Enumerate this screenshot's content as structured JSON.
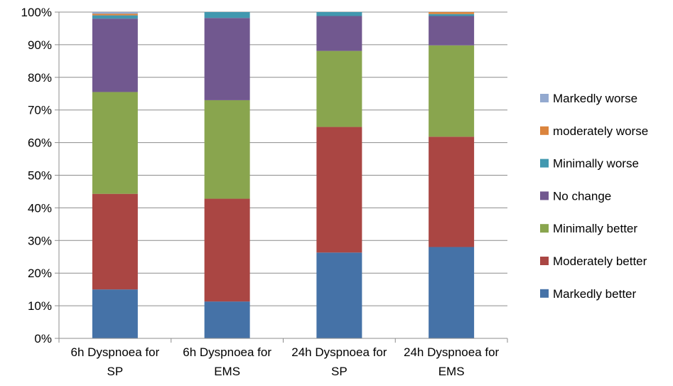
{
  "chart_data": {
    "type": "bar",
    "stacked": true,
    "percent_stacked": true,
    "categories": [
      [
        "6h Dyspnoea for",
        "SP"
      ],
      [
        "6h Dyspnoea for",
        "EMS"
      ],
      [
        "24h Dyspnoea for",
        "SP"
      ],
      [
        "24h Dyspnoea for",
        "EMS"
      ]
    ],
    "ylim": [
      0,
      100
    ],
    "yticks": [
      "0%",
      "10%",
      "20%",
      "30%",
      "40%",
      "50%",
      "60%",
      "70%",
      "80%",
      "90%",
      "100%"
    ],
    "ytick_values": [
      0,
      10,
      20,
      30,
      40,
      50,
      60,
      70,
      80,
      90,
      100
    ],
    "grid": true,
    "legend_position": "right",
    "series": [
      {
        "name": "Markedly better",
        "color": "#4572A7",
        "values": [
          15,
          11.3,
          26.3,
          28
        ]
      },
      {
        "name": "Moderately better",
        "color": "#AA4643",
        "values": [
          29.3,
          31.5,
          38.5,
          33.8
        ]
      },
      {
        "name": "Minimally better",
        "color": "#89A54E",
        "values": [
          31.2,
          30.2,
          23.3,
          28
        ]
      },
      {
        "name": "No change",
        "color": "#71588F",
        "values": [
          22.5,
          25.2,
          10.7,
          9
        ]
      },
      {
        "name": "Minimally worse",
        "color": "#4198AF",
        "values": [
          1,
          1.8,
          1.2,
          0.6
        ]
      },
      {
        "name": "moderately worse",
        "color": "#DB843D",
        "values": [
          0.5,
          0,
          0,
          0.6
        ]
      },
      {
        "name": "Markedly worse",
        "color": "#93A9CF",
        "values": [
          0.5,
          0,
          0,
          0
        ]
      }
    ]
  }
}
